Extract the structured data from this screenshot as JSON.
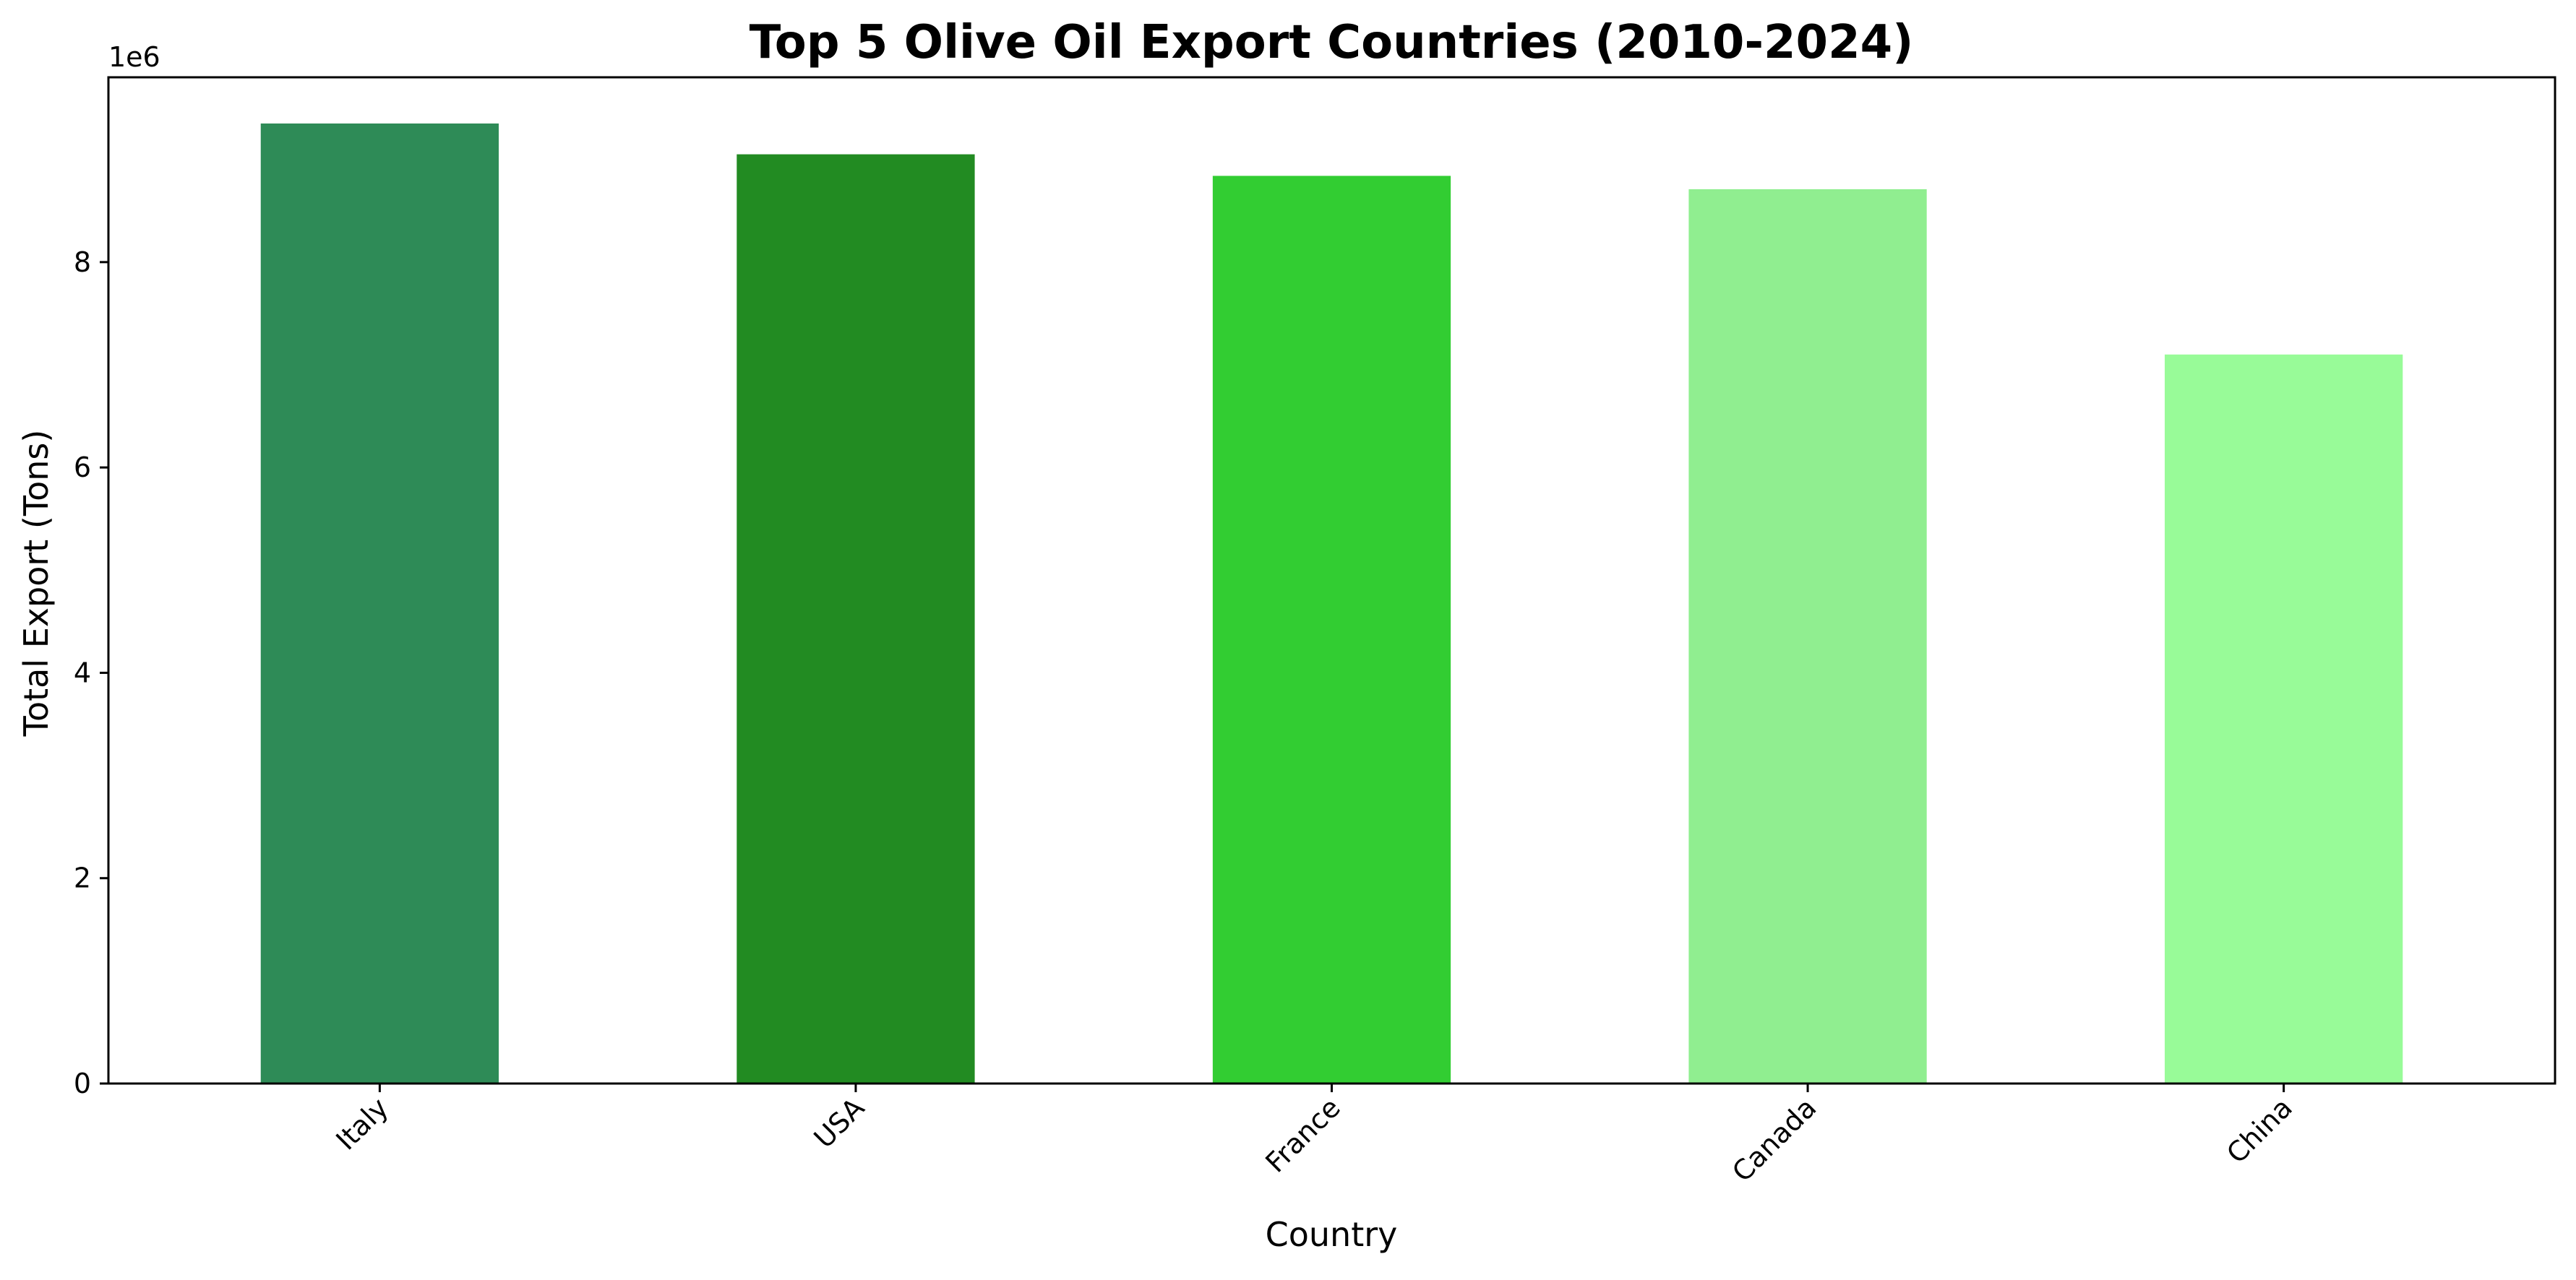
{
  "chart_data": {
    "type": "bar",
    "title": "Top 5 Olive Oil Export Countries (2010-2024)",
    "xlabel": "Country",
    "ylabel": "Total Export (Tons)",
    "y_offset_label": "1e6",
    "categories": [
      "Italy",
      "USA",
      "France",
      "Canada",
      "China"
    ],
    "values": [
      9350000,
      9050000,
      8840000,
      8710000,
      7100000
    ],
    "colors": [
      "#2E8B57",
      "#228B22",
      "#32CD32",
      "#90EE90",
      "#98FB98"
    ],
    "ylim": [
      0,
      9800000
    ],
    "yticks": [
      0,
      2000000,
      4000000,
      6000000,
      8000000
    ],
    "ytick_labels": [
      "0",
      "2",
      "4",
      "6",
      "8"
    ],
    "xtick_rotation_deg": 45,
    "grid": false,
    "legend": "none"
  }
}
